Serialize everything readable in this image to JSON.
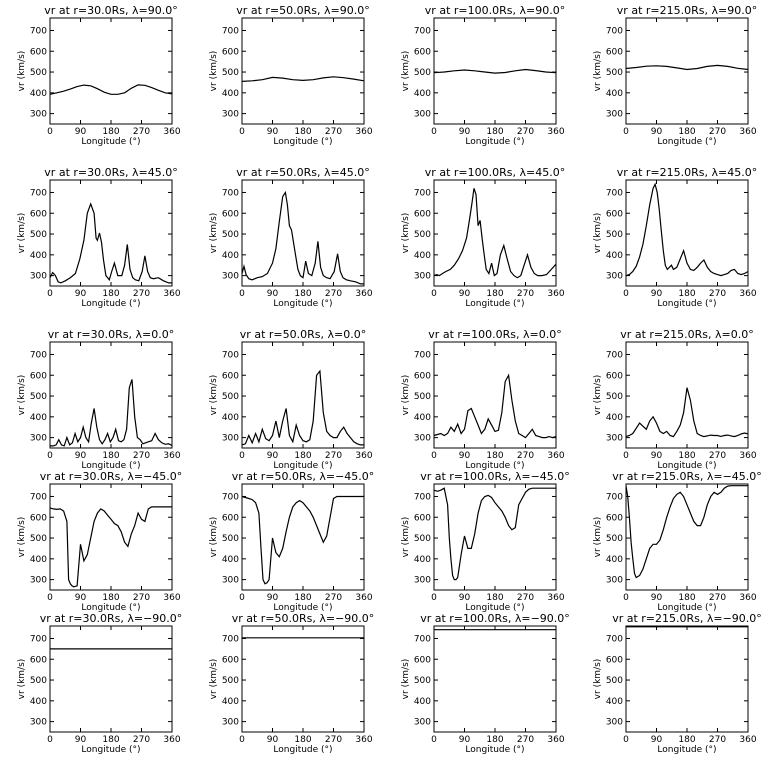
{
  "chart_data": {
    "type": "line",
    "panel_grid": {
      "rows": 5,
      "cols": 4
    },
    "shared_axes": {
      "xlabel": "Longitude (°)",
      "ylabel": "vr (km/s)",
      "xlim": [
        0,
        360
      ],
      "ylim": [
        250,
        760
      ],
      "xticks": [
        "0",
        "90",
        "180",
        "270",
        "360"
      ],
      "yticks": [
        "300",
        "400",
        "500",
        "600",
        "700"
      ],
      "grid": false
    },
    "panels": [
      {
        "title": "vr at r=30.0Rs, λ=90.0°",
        "x": [
          0,
          20,
          40,
          60,
          80,
          100,
          120,
          140,
          160,
          180,
          200,
          220,
          240,
          260,
          280,
          300,
          320,
          340,
          360
        ],
        "y": [
          393,
          400,
          408,
          418,
          430,
          437,
          434,
          420,
          403,
          393,
          393,
          400,
          422,
          438,
          436,
          425,
          412,
          400,
          395
        ]
      },
      {
        "title": "vr at r=50.0Rs, λ=90.0°",
        "x": [
          0,
          30,
          60,
          90,
          120,
          150,
          180,
          210,
          240,
          270,
          300,
          330,
          360
        ],
        "y": [
          455,
          458,
          463,
          474,
          471,
          463,
          460,
          463,
          472,
          477,
          473,
          466,
          458
        ]
      },
      {
        "title": "vr at r=100.0Rs, λ=90.0°",
        "x": [
          0,
          30,
          60,
          90,
          120,
          150,
          180,
          210,
          240,
          270,
          300,
          330,
          360
        ],
        "y": [
          497,
          500,
          506,
          510,
          506,
          500,
          495,
          498,
          506,
          512,
          507,
          500,
          497
        ]
      },
      {
        "title": "vr at r=215.0Rs, λ=90.0°",
        "x": [
          0,
          30,
          60,
          90,
          120,
          150,
          180,
          210,
          240,
          270,
          300,
          330,
          360
        ],
        "y": [
          517,
          522,
          528,
          530,
          527,
          520,
          512,
          517,
          527,
          532,
          527,
          518,
          512
        ]
      },
      {
        "title": "vr at r=30.0Rs, λ=45.0°",
        "x": [
          0,
          8,
          16,
          24,
          32,
          45,
          60,
          75,
          88,
          100,
          110,
          120,
          130,
          136,
          140,
          146,
          152,
          158,
          165,
          175,
          182,
          190,
          200,
          212,
          220,
          228,
          236,
          244,
          252,
          262,
          272,
          280,
          288,
          296,
          305,
          320,
          335,
          350,
          360
        ],
        "y": [
          290,
          315,
          300,
          270,
          265,
          275,
          290,
          310,
          380,
          470,
          600,
          645,
          600,
          480,
          470,
          505,
          460,
          375,
          300,
          280,
          320,
          360,
          300,
          300,
          350,
          450,
          330,
          290,
          280,
          275,
          320,
          395,
          320,
          290,
          285,
          290,
          275,
          265,
          265
        ]
      },
      {
        "title": "vr at r=50.0Rs, λ=45.0°",
        "x": [
          0,
          6,
          12,
          20,
          30,
          45,
          60,
          75,
          90,
          100,
          110,
          120,
          128,
          134,
          140,
          146,
          152,
          158,
          165,
          172,
          180,
          188,
          196,
          206,
          216,
          224,
          232,
          240,
          250,
          260,
          272,
          282,
          290,
          298,
          308,
          320,
          335,
          350,
          360
        ],
        "y": [
          310,
          345,
          305,
          285,
          280,
          290,
          295,
          310,
          360,
          430,
          560,
          680,
          700,
          640,
          540,
          520,
          460,
          400,
          330,
          300,
          290,
          370,
          310,
          300,
          360,
          465,
          340,
          300,
          290,
          285,
          320,
          405,
          320,
          290,
          280,
          275,
          270,
          260,
          260
        ]
      },
      {
        "title": "vr at r=100.0Rs, λ=45.0°",
        "x": [
          0,
          8,
          16,
          25,
          35,
          48,
          60,
          72,
          84,
          96,
          104,
          112,
          118,
          124,
          130,
          136,
          142,
          148,
          154,
          162,
          170,
          178,
          186,
          196,
          206,
          216,
          226,
          236,
          246,
          256,
          266,
          276,
          286,
          296,
          306,
          318,
          332,
          346,
          360
        ],
        "y": [
          300,
          305,
          300,
          310,
          320,
          330,
          350,
          380,
          420,
          480,
          560,
          650,
          720,
          690,
          540,
          565,
          480,
          400,
          330,
          310,
          360,
          300,
          310,
          400,
          445,
          380,
          320,
          300,
          290,
          300,
          350,
          400,
          340,
          310,
          300,
          300,
          305,
          330,
          355
        ]
      },
      {
        "title": "vr at r=215.0Rs, λ=45.0°",
        "x": [
          0,
          10,
          20,
          30,
          40,
          50,
          60,
          70,
          80,
          86,
          92,
          98,
          104,
          110,
          116,
          122,
          128,
          134,
          140,
          150,
          160,
          170,
          180,
          190,
          200,
          210,
          220,
          230,
          240,
          250,
          260,
          270,
          280,
          290,
          300,
          310,
          320,
          330,
          340,
          350,
          360
        ],
        "y": [
          300,
          305,
          320,
          345,
          390,
          450,
          540,
          640,
          720,
          740,
          700,
          620,
          520,
          420,
          350,
          330,
          340,
          350,
          330,
          340,
          380,
          420,
          360,
          330,
          325,
          340,
          360,
          375,
          340,
          320,
          310,
          305,
          300,
          305,
          310,
          325,
          330,
          310,
          305,
          310,
          320
        ]
      },
      {
        "title": "vr at r=30.0Rs, λ=0.0°",
        "x": [
          0,
          10,
          18,
          26,
          34,
          42,
          50,
          58,
          66,
          74,
          82,
          90,
          98,
          106,
          114,
          122,
          130,
          138,
          146,
          154,
          162,
          170,
          178,
          186,
          194,
          202,
          210,
          218,
          226,
          234,
          242,
          250,
          258,
          266,
          274,
          282,
          290,
          300,
          310,
          320,
          330,
          340,
          350,
          360
        ],
        "y": [
          260,
          260,
          265,
          290,
          265,
          260,
          300,
          265,
          275,
          320,
          280,
          300,
          350,
          300,
          280,
          370,
          440,
          350,
          290,
          270,
          290,
          320,
          280,
          300,
          340,
          285,
          280,
          290,
          340,
          540,
          580,
          400,
          300,
          290,
          270,
          275,
          280,
          285,
          320,
          290,
          275,
          268,
          270,
          262
        ]
      },
      {
        "title": "vr at r=50.0Rs, λ=0.0°",
        "x": [
          0,
          10,
          20,
          30,
          40,
          50,
          60,
          70,
          80,
          90,
          100,
          110,
          120,
          130,
          140,
          150,
          160,
          170,
          180,
          190,
          200,
          210,
          220,
          230,
          240,
          250,
          260,
          270,
          280,
          290,
          300,
          310,
          320,
          330,
          340,
          350,
          360
        ],
        "y": [
          265,
          270,
          310,
          275,
          320,
          280,
          340,
          295,
          285,
          310,
          380,
          300,
          380,
          440,
          310,
          280,
          360,
          310,
          285,
          280,
          290,
          380,
          600,
          620,
          420,
          330,
          310,
          300,
          300,
          330,
          350,
          320,
          300,
          280,
          270,
          265,
          265
        ]
      },
      {
        "title": "vr at r=100.0Rs, λ=0.0°",
        "x": [
          0,
          10,
          20,
          30,
          40,
          50,
          60,
          70,
          80,
          90,
          100,
          110,
          120,
          130,
          140,
          150,
          160,
          170,
          180,
          190,
          200,
          210,
          220,
          230,
          240,
          250,
          260,
          270,
          280,
          290,
          300,
          310,
          320,
          330,
          340,
          350,
          360
        ],
        "y": [
          310,
          315,
          320,
          310,
          320,
          350,
          330,
          365,
          320,
          340,
          430,
          440,
          400,
          360,
          320,
          340,
          390,
          360,
          330,
          335,
          420,
          570,
          600,
          480,
          380,
          320,
          310,
          300,
          320,
          340,
          310,
          305,
          300,
          300,
          305,
          300,
          305
        ]
      },
      {
        "title": "vr at r=215.0Rs, λ=0.0°",
        "x": [
          0,
          10,
          20,
          30,
          40,
          50,
          60,
          70,
          80,
          90,
          100,
          110,
          120,
          130,
          140,
          150,
          160,
          170,
          180,
          190,
          200,
          210,
          220,
          230,
          240,
          250,
          260,
          270,
          280,
          290,
          300,
          310,
          320,
          330,
          340,
          350,
          360
        ],
        "y": [
          305,
          310,
          320,
          345,
          370,
          355,
          340,
          380,
          400,
          370,
          330,
          320,
          330,
          310,
          305,
          330,
          360,
          420,
          540,
          480,
          380,
          320,
          310,
          305,
          308,
          312,
          310,
          310,
          306,
          310,
          312,
          308,
          305,
          310,
          318,
          322,
          318
        ]
      },
      {
        "title": "vr at r=30.0Rs, λ=−45.0°",
        "x": [
          0,
          10,
          20,
          30,
          40,
          50,
          55,
          60,
          65,
          70,
          80,
          90,
          100,
          110,
          120,
          130,
          140,
          150,
          160,
          170,
          180,
          190,
          200,
          210,
          220,
          230,
          240,
          250,
          260,
          270,
          280,
          290,
          300,
          310,
          320,
          330,
          340,
          350,
          360
        ],
        "y": [
          645,
          640,
          638,
          640,
          630,
          580,
          300,
          280,
          270,
          265,
          270,
          470,
          390,
          420,
          500,
          580,
          620,
          640,
          630,
          610,
          590,
          570,
          560,
          530,
          480,
          460,
          520,
          560,
          620,
          590,
          580,
          640,
          650,
          650,
          650,
          650,
          650,
          650,
          650
        ]
      },
      {
        "title": "vr at r=50.0Rs, λ=−45.0°",
        "x": [
          0,
          10,
          20,
          30,
          40,
          50,
          56,
          62,
          68,
          74,
          80,
          90,
          100,
          110,
          120,
          130,
          140,
          150,
          160,
          170,
          180,
          190,
          200,
          210,
          220,
          230,
          240,
          250,
          260,
          270,
          280,
          290,
          300,
          310,
          320,
          330,
          340,
          350,
          360
        ],
        "y": [
          700,
          695,
          690,
          685,
          670,
          620,
          450,
          300,
          280,
          285,
          300,
          500,
          430,
          410,
          450,
          530,
          600,
          650,
          670,
          680,
          670,
          650,
          630,
          600,
          560,
          520,
          480,
          510,
          600,
          690,
          700,
          700,
          700,
          700,
          700,
          700,
          700,
          700,
          700
        ]
      },
      {
        "title": "vr at r=100.0Rs, λ=−45.0°",
        "x": [
          0,
          10,
          20,
          30,
          40,
          45,
          50,
          55,
          60,
          65,
          70,
          80,
          90,
          100,
          110,
          120,
          130,
          140,
          150,
          160,
          170,
          180,
          190,
          200,
          210,
          220,
          230,
          240,
          250,
          260,
          270,
          280,
          290,
          300,
          310,
          320,
          330,
          340,
          350,
          360
        ],
        "y": [
          730,
          725,
          730,
          740,
          660,
          500,
          400,
          320,
          300,
          300,
          310,
          420,
          510,
          450,
          450,
          520,
          620,
          680,
          700,
          705,
          695,
          670,
          650,
          630,
          600,
          560,
          540,
          550,
          660,
          690,
          720,
          735,
          740,
          740,
          740,
          740,
          740,
          740,
          740,
          740
        ]
      },
      {
        "title": "vr at r=215.0Rs, λ=−45.0°",
        "x": [
          0,
          5,
          10,
          15,
          20,
          25,
          30,
          40,
          50,
          60,
          70,
          80,
          90,
          100,
          110,
          120,
          130,
          140,
          150,
          160,
          170,
          180,
          190,
          200,
          210,
          220,
          230,
          240,
          250,
          260,
          270,
          280,
          290,
          300,
          310,
          320,
          330,
          340,
          350,
          360
        ],
        "y": [
          750,
          700,
          600,
          480,
          400,
          330,
          310,
          320,
          350,
          400,
          450,
          470,
          470,
          490,
          540,
          600,
          650,
          690,
          710,
          720,
          700,
          660,
          620,
          580,
          560,
          560,
          600,
          660,
          700,
          720,
          710,
          720,
          740,
          750,
          752,
          752,
          752,
          752,
          752,
          752
        ]
      },
      {
        "title": "vr at r=30.0Rs, λ=−90.0°",
        "x": [
          0,
          360
        ],
        "y": [
          650,
          650
        ]
      },
      {
        "title": "vr at r=50.0Rs, λ=−90.0°",
        "x": [
          0,
          360
        ],
        "y": [
          703,
          703
        ]
      },
      {
        "title": "vr at r=100.0Rs, λ=−90.0°",
        "x": [
          0,
          360
        ],
        "y": [
          742,
          742
        ]
      },
      {
        "title": "vr at r=215.0Rs, λ=−90.0°",
        "x": [
          0,
          360
        ],
        "y": [
          756,
          756
        ]
      }
    ]
  }
}
